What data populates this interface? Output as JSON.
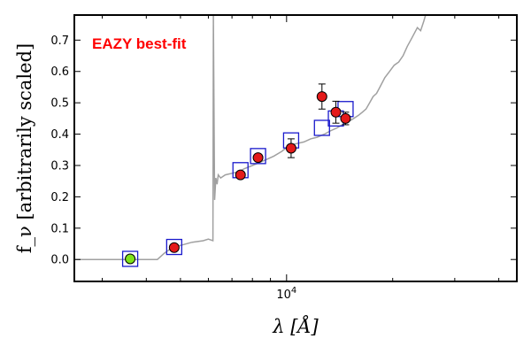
{
  "chart_data": {
    "type": "scatter",
    "title": "",
    "annotation": "EAZY best-fit",
    "annotation_color": "#ff0000",
    "xlabel": "λ [Å]",
    "ylabel": "f_ν [arbitrarily scaled]",
    "xscale": "log",
    "xlim": [
      2500,
      45000
    ],
    "ylim": [
      -0.07,
      0.78
    ],
    "x_tick_labels": [
      {
        "value": 10000,
        "label": "10^4"
      }
    ],
    "y_ticks": [
      0.0,
      0.1,
      0.2,
      0.3,
      0.4,
      0.5,
      0.6,
      0.7
    ],
    "y_tick_labels": [
      "0.0",
      "0.1",
      "0.2",
      "0.3",
      "0.4",
      "0.5",
      "0.6",
      "0.7"
    ],
    "grid": false,
    "colors": {
      "model_line": "#a0a0a0",
      "model_photometry": "#1a1acc",
      "observed_fill": "#e41a1a",
      "upper_limit_fill": "#7fe31a",
      "errorbar": "#000000"
    },
    "series": [
      {
        "role": "model_spectrum",
        "x": [
          2500,
          4300,
          4500,
          4700,
          5000,
          5400,
          5800,
          6000,
          6180,
          6200,
          6250,
          6300,
          6350,
          6400,
          6500,
          6700,
          7000,
          7300,
          7600,
          8000,
          8400,
          8800,
          9200,
          9700,
          10200,
          10700,
          11200,
          11700,
          12200,
          12800,
          13300,
          13900,
          14400,
          15000,
          15500,
          16000,
          16400,
          16800,
          17200,
          17600,
          18000,
          18400,
          19000,
          19600,
          20200,
          20800,
          21400,
          22000,
          22500,
          23000,
          23500,
          24000,
          24500,
          24800
        ],
        "y": [
          0.0,
          0.0,
          0.02,
          0.035,
          0.045,
          0.055,
          0.06,
          0.065,
          0.06,
          0.78,
          0.19,
          0.26,
          0.24,
          0.27,
          0.26,
          0.27,
          0.275,
          0.28,
          0.29,
          0.3,
          0.31,
          0.32,
          0.33,
          0.345,
          0.365,
          0.37,
          0.375,
          0.385,
          0.39,
          0.4,
          0.41,
          0.42,
          0.43,
          0.44,
          0.45,
          0.46,
          0.47,
          0.48,
          0.5,
          0.52,
          0.53,
          0.55,
          0.58,
          0.6,
          0.62,
          0.63,
          0.65,
          0.68,
          0.7,
          0.72,
          0.74,
          0.73,
          0.76,
          0.78
        ]
      },
      {
        "role": "model_photometry",
        "x": [
          3600,
          4800,
          7400,
          8300,
          10300,
          12600,
          13800,
          14700
        ],
        "y": [
          0.002,
          0.04,
          0.285,
          0.33,
          0.38,
          0.42,
          0.45,
          0.48
        ]
      },
      {
        "role": "observed_photometry",
        "x": [
          4800,
          7400,
          8300,
          10300,
          12600,
          13800,
          14700
        ],
        "y": [
          0.038,
          0.27,
          0.325,
          0.355,
          0.52,
          0.47,
          0.45
        ],
        "yerr": [
          0.004,
          0.006,
          0.008,
          0.03,
          0.04,
          0.035,
          0.02
        ]
      },
      {
        "role": "upper_limit",
        "x": [
          3600
        ],
        "y": [
          0.002
        ]
      }
    ]
  }
}
